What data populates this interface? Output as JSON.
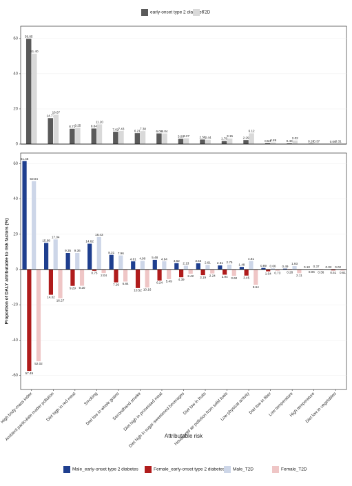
{
  "chart_data": [
    {
      "type": "bar",
      "legend": "top",
      "grid": true,
      "ylim": [
        0,
        67
      ],
      "yticks": [
        0,
        20,
        40,
        60
      ],
      "series": [
        {
          "name": "early-onset type 2 diabetes",
          "color": "#5a5a5a",
          "values": [
            59.85,
            14.77,
            8.71,
            8.84,
            7.02,
            6.21,
            6.06,
            3.0,
            2.58,
            1.78,
            2.29,
            0.54,
            0.4,
            0.28,
            0.06
          ],
          "value_labels": [
            "59.85",
            "14.77",
            "8.71",
            "8.84",
            "7.02",
            "6.21",
            "6.06",
            "3.00",
            "2.58",
            "1.78",
            "2.29",
            "0.54",
            "0.40",
            "0.28",
            "0.06"
          ]
        },
        {
          "name": "T2D",
          "color": "#d9d9d9",
          "values": [
            51.4,
            16.67,
            9.25,
            11.2,
            7.43,
            7.38,
            6.04,
            3.27,
            2.44,
            3.15,
            6.12,
            0.89,
            2.02,
            0.37,
            0.31
          ],
          "value_labels": [
            "51.40",
            "16.67",
            "9.25",
            "11.20",
            "7.43",
            "7.38",
            "6.04",
            "3.27",
            "2.44",
            "3.15",
            "6.12",
            "0.89",
            "2.02",
            "0.37",
            "0.31"
          ]
        }
      ]
    },
    {
      "type": "bar",
      "legend": "bottom",
      "grid": true,
      "ylabel": "Proportion of DALY attributable to risk factors (%)",
      "xlabel": "Attributable risk",
      "categories": [
        "High body-mass index",
        "Ambient particulate matter pollution",
        "Diet high in red meat",
        "Smoking",
        "Diet low in whole grains",
        "Secondhand smoke",
        "Diet high in processed meat",
        "Diet high in sugar-sweetened beverages",
        "Diet low in fruits",
        "Household air pollution from solid fuels",
        "Low physical activity",
        "Diet low in fiber",
        "Low temperature",
        "High temperature",
        "Diet low in vegetables"
      ],
      "ylim": [
        -68,
        66
      ],
      "yticks": [
        -60,
        -40,
        -20,
        0,
        20,
        40,
        60
      ],
      "series": [
        {
          "name": "Male_early-onset type 2 diabetes",
          "color": "#1f3f8f",
          "values": [
            61.45,
            15.08,
            9.35,
            14.62,
            8.31,
            4.61,
            5.48,
            3.62,
            3.53,
            2.31,
            1.48,
            0.89,
            0.49,
            0.1,
            0.02
          ],
          "value_labels": [
            "61.45",
            "15.08",
            "9.35",
            "14.62",
            "8.31",
            "4.61",
            "5.48",
            "3.62",
            "3.53",
            "2.31",
            "1.48",
            "0.89",
            "0.49",
            "0.10",
            "0.02"
          ]
        },
        {
          "name": "Female_early-onset type 2 diabetes",
          "color": "#b01c1c",
          "values": [
            -57.49,
            -14.32,
            -9.29,
            -0.75,
            -7.29,
            -10.52,
            -6.24,
            -4.39,
            -3.19,
            -2.94,
            -3.45,
            -1.04,
            -0.28,
            -0.06,
            -0.51
          ],
          "value_labels": [
            "57.49",
            "14.32",
            "9.29",
            "0.75",
            "7.29",
            "10.52",
            "6.24",
            "4.39",
            "3.19",
            "2.94",
            "3.45",
            "1.04",
            "0.28",
            "0.06",
            "0.51"
          ]
        },
        {
          "name": "Male_T2D",
          "color": "#cdd6e8",
          "values": [
            50.04,
            17.04,
            9.36,
            18.43,
            7.96,
            4.9,
            4.64,
            2.13,
            2.61,
            2.75,
            4.81,
            0.66,
            1.93,
            0.37,
            0.02
          ],
          "value_labels": [
            "50.04",
            "17.04",
            "9.36",
            "18.43",
            "7.96",
            "4.90",
            "4.64",
            "2.13",
            "2.61",
            "2.75",
            "4.81",
            "0.66",
            "1.93",
            "0.37",
            "0.02"
          ]
        },
        {
          "name": "Female_T2D",
          "color": "#efc6c6",
          "values": [
            -52.02,
            -16.27,
            -9.2,
            -2.04,
            -6.84,
            -10.16,
            -5.49,
            -2.42,
            -2.24,
            -3.6,
            -8.64,
            -0.73,
            -2.11,
            -0.36,
            -0.61
          ],
          "value_labels": [
            "52.02",
            "16.27",
            "9.20",
            "2.04",
            "6.84",
            "10.16",
            "5.49",
            "2.42",
            "2.24",
            "3.60",
            "8.64",
            "0.73",
            "2.11",
            "0.36",
            "0.61"
          ]
        }
      ]
    }
  ]
}
